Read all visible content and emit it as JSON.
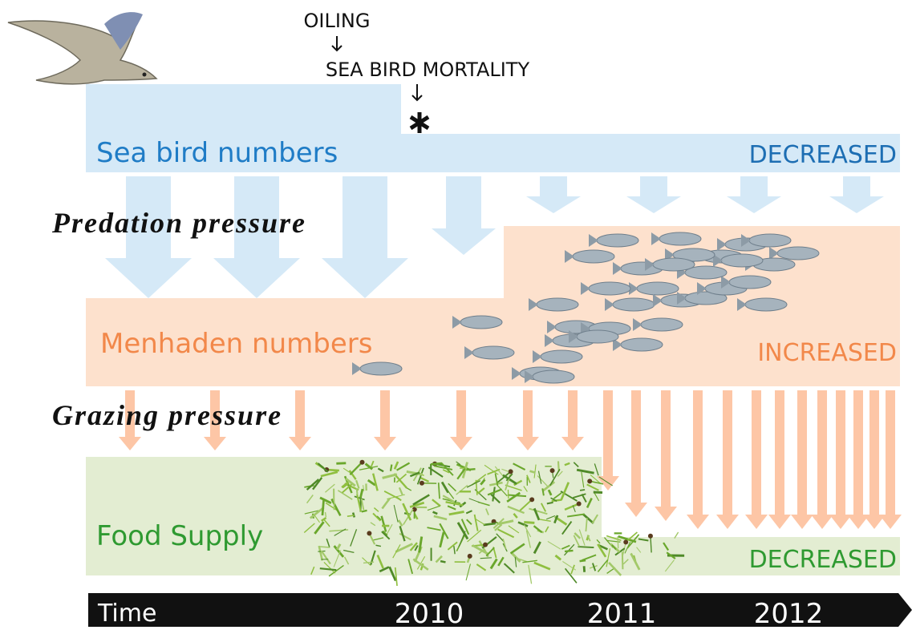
{
  "annotations": {
    "event": "OILING",
    "consequence": "SEA BIRD MORTALITY"
  },
  "rows": [
    {
      "label": "Sea bird numbers",
      "outcome": "DECREASED"
    },
    {
      "label": "Menhaden numbers",
      "outcome": "INCREASED"
    },
    {
      "label": "Food Supply",
      "outcome": "DECREASED"
    }
  ],
  "pressures": [
    "Predation pressure",
    "Grazing pressure"
  ],
  "timeline": {
    "label": "Time",
    "years": [
      "2010",
      "2011",
      "2012"
    ]
  }
}
